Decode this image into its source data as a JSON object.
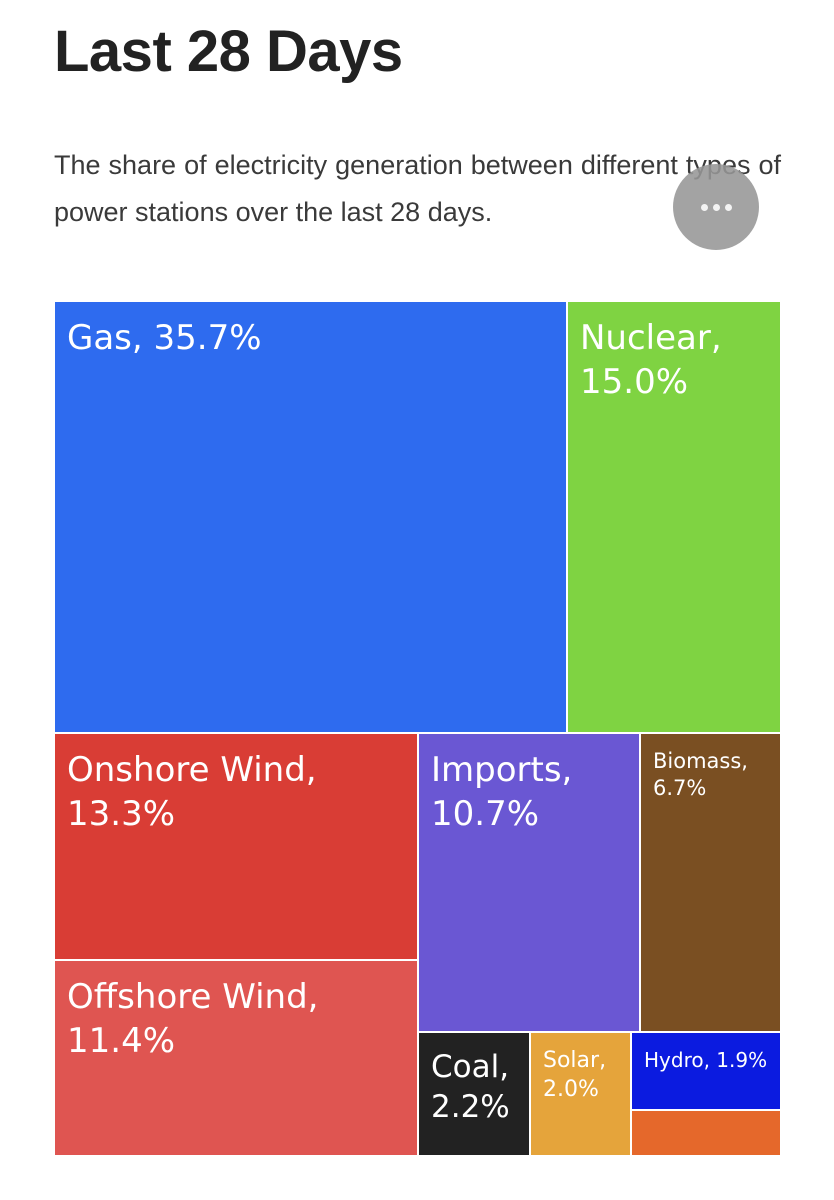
{
  "header": {
    "title": "Last 28 Days",
    "description": "The share of electricity generation between different types of power stations over the last 28 days."
  },
  "menu": {
    "icon": "more-horizontal-icon"
  },
  "chart_data": {
    "type": "treemap",
    "unit": "%",
    "items": [
      {
        "name": "Gas",
        "value": 35.7,
        "label": "Gas, 35.7%",
        "color": "#2e6bef"
      },
      {
        "name": "Nuclear",
        "value": 15.0,
        "label": "Nuclear, 15.0%",
        "color": "#7fd342"
      },
      {
        "name": "Onshore Wind",
        "value": 13.3,
        "label": "Onshore Wind, 13.3%",
        "color": "#d93d35"
      },
      {
        "name": "Offshore Wind",
        "value": 11.4,
        "label": "Offshore Wind, 11.4%",
        "color": "#df5551"
      },
      {
        "name": "Imports",
        "value": 10.7,
        "label": "Imports, 10.7%",
        "color": "#6a57d3"
      },
      {
        "name": "Biomass",
        "value": 6.7,
        "label": "Biomass, 6.7%",
        "color": "#7a4f22"
      },
      {
        "name": "Coal",
        "value": 2.2,
        "label": "Coal, 2.2%",
        "color": "#222222"
      },
      {
        "name": "Solar",
        "value": 2.0,
        "label": "Solar, 2.0%",
        "color": "#e5a43b"
      },
      {
        "name": "Hydro",
        "value": 1.9,
        "label": "Hydro, 1.9%",
        "color": "#0b1be0"
      },
      {
        "name": "",
        "value": 1.1,
        "label": "",
        "color": "#e5682b"
      }
    ]
  }
}
